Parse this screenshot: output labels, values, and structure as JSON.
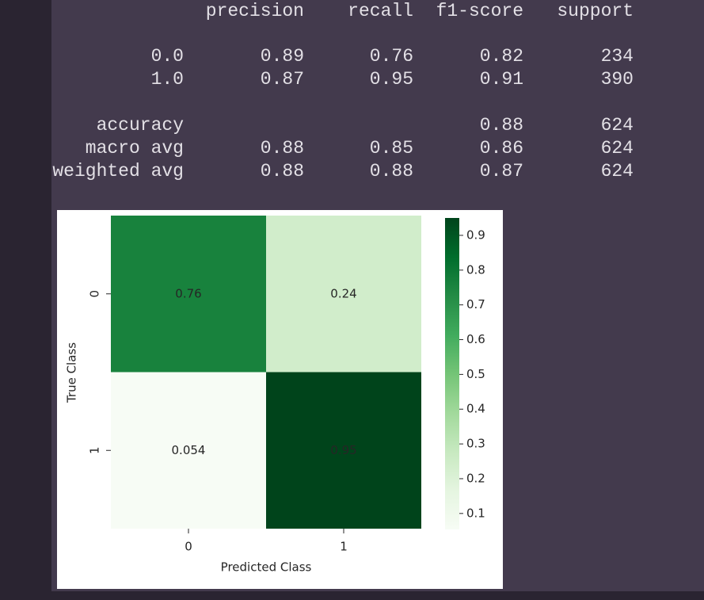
{
  "report": {
    "header": [
      "precision",
      "recall",
      "f1-score",
      "support"
    ],
    "rows": [
      {
        "label": "0.0",
        "precision": "0.89",
        "recall": "0.76",
        "f1-score": "0.82",
        "support": "234"
      },
      {
        "label": "1.0",
        "precision": "0.87",
        "recall": "0.95",
        "f1-score": "0.91",
        "support": "390"
      },
      {
        "label": "accuracy",
        "f1-score": "0.88",
        "support": "624"
      },
      {
        "label": "macro avg",
        "precision": "0.88",
        "recall": "0.85",
        "f1-score": "0.86",
        "support": "624"
      },
      {
        "label": "weighted avg",
        "precision": "0.88",
        "recall": "0.88",
        "f1-score": "0.87",
        "support": "624"
      }
    ]
  },
  "chart_data": {
    "type": "heatmap",
    "x_label": "Predicted Class",
    "y_label": "True Class",
    "x_categories": [
      "0",
      "1"
    ],
    "y_categories": [
      "0",
      "1"
    ],
    "values": [
      [
        0.76,
        0.24
      ],
      [
        0.054,
        0.95
      ]
    ],
    "colormap": [
      "#f7fcf5",
      "#e5f5e0",
      "#c7e9c0",
      "#a1d99b",
      "#74c476",
      "#41ab5d",
      "#238b45",
      "#006d2c",
      "#00441b"
    ],
    "zlim": [
      0.054,
      0.95
    ],
    "zticks": [
      0.1,
      0.2,
      0.3,
      0.4,
      0.5,
      0.6,
      0.7,
      0.8,
      0.9
    ]
  }
}
